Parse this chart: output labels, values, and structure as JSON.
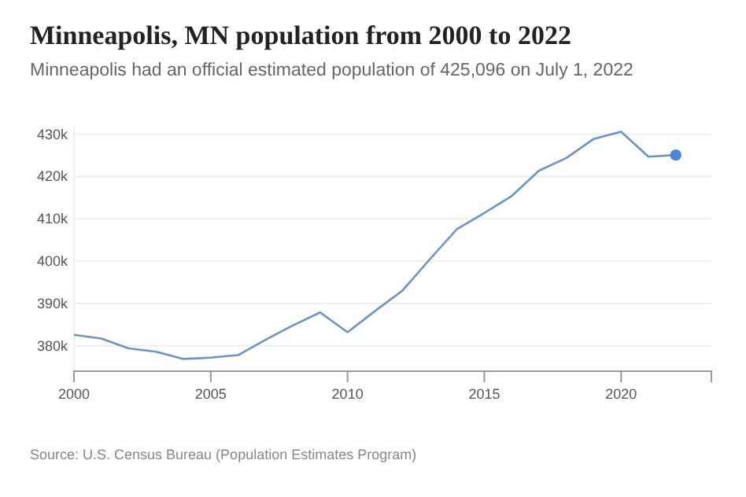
{
  "chart_data": {
    "type": "line",
    "title": "Minneapolis, MN population from 2000 to 2022",
    "subtitle": "Minneapolis had an official estimated population of 425,096 on July 1, 2022",
    "annotations": [
      "Source: U.S. Census Bureau (Population Estimates Program)"
    ],
    "x": [
      2000,
      2001,
      2002,
      2003,
      2004,
      2005,
      2006,
      2007,
      2008,
      2009,
      2010,
      2011,
      2012,
      2013,
      2014,
      2015,
      2016,
      2017,
      2018,
      2019,
      2020,
      2021,
      2022
    ],
    "series": [
      {
        "color": "#6c93c4",
        "values": [
          382600,
          381700,
          379400,
          378600,
          376900,
          377200,
          377800,
          381400,
          384800,
          387900,
          383200,
          388200,
          393000,
          400400,
          407600,
          411400,
          415400,
          421400,
          424400,
          428900,
          430600,
          424700,
          425096
        ]
      },
      {
        "type": "scatter",
        "marker": "circle",
        "color": "#4a85d6",
        "x": [
          2022
        ],
        "values": [
          425096
        ]
      }
    ],
    "xlim": [
      2000,
      2023.3
    ],
    "xticks": [
      2000,
      2005,
      2010,
      2015,
      2020
    ],
    "ylim": [
      374000,
      432000
    ],
    "yticks": [
      {
        "value": 380000,
        "label": "380k"
      },
      {
        "value": 390000,
        "label": "390k"
      },
      {
        "value": 400000,
        "label": "400k"
      },
      {
        "value": 410000,
        "label": "410k"
      },
      {
        "value": 420000,
        "label": "420k"
      },
      {
        "value": 430000,
        "label": "430k"
      }
    ],
    "grid": "y",
    "marker": "none",
    "line_style": "solid"
  }
}
